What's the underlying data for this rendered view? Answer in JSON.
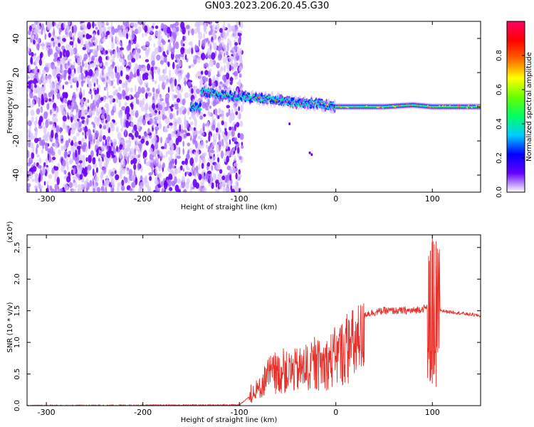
{
  "title": "GN03.2023.206.20.45.G30",
  "chart_data": [
    {
      "type": "heatmap",
      "xlabel": "Height of straight line (km)",
      "ylabel": "Frequency (Hz)",
      "xlim": [
        -320,
        150
      ],
      "ylim": [
        -50,
        50
      ],
      "xticks": [
        -300,
        -200,
        -100,
        0,
        100
      ],
      "yticks": [
        -40,
        -20,
        0,
        20,
        40
      ],
      "colorbar": {
        "label": "Normalized spectral amplitude",
        "range": [
          0,
          1
        ],
        "ticks": [
          "0.0",
          "0.2",
          "0.4",
          "0.6",
          "0.8"
        ],
        "colors": [
          "#ffffff",
          "#6600ff",
          "#0000ff",
          "#00ccff",
          "#00ff66",
          "#66ff00",
          "#ffff00",
          "#ff6600",
          "#ff0000",
          "#ff0066"
        ]
      },
      "noise_region_x": [
        -320,
        -100
      ],
      "signal_ridge": [
        {
          "x": -140,
          "y": 9
        },
        {
          "x": -120,
          "y": 7
        },
        {
          "x": -100,
          "y": 6
        },
        {
          "x": -80,
          "y": 5
        },
        {
          "x": -60,
          "y": 4
        },
        {
          "x": -40,
          "y": 2
        },
        {
          "x": -20,
          "y": 2
        },
        {
          "x": 0,
          "y": 0
        },
        {
          "x": 20,
          "y": 0
        },
        {
          "x": 50,
          "y": 0
        },
        {
          "x": 80,
          "y": 1
        },
        {
          "x": 100,
          "y": 0
        },
        {
          "x": 150,
          "y": 0
        }
      ],
      "grid": false
    },
    {
      "type": "line",
      "xlabel": "Height of straight line (km)",
      "ylabel": "SNR (10 * v/v)",
      "y_multiplier": "(x10⁴)",
      "xlim": [
        -320,
        150
      ],
      "ylim": [
        0,
        2.7
      ],
      "xticks": [
        -300,
        -200,
        -100,
        0,
        100
      ],
      "yticks": [
        "0.0",
        "0.5",
        "1.0",
        "1.5",
        "2.0",
        "2.5"
      ],
      "series": [
        {
          "color": "#e8302a",
          "envelope": [
            {
              "x": -320,
              "y": 0.0
            },
            {
              "x": -100,
              "y": 0.01
            },
            {
              "x": -85,
              "y": 0.2
            },
            {
              "x": -70,
              "y": 0.7
            },
            {
              "x": -50,
              "y": 0.75
            },
            {
              "x": -30,
              "y": 0.85
            },
            {
              "x": -10,
              "y": 0.95
            },
            {
              "x": 10,
              "y": 1.25
            },
            {
              "x": 30,
              "y": 1.5
            },
            {
              "x": 50,
              "y": 1.55
            },
            {
              "x": 80,
              "y": 1.55
            },
            {
              "x": 95,
              "y": 1.6
            },
            {
              "x": 100,
              "y": 1.6
            },
            {
              "x": 110,
              "y": 1.5
            },
            {
              "x": 150,
              "y": 1.42
            }
          ],
          "spikes": [
            {
              "x": 98,
              "min": 0.4,
              "max": 2.45
            },
            {
              "x": 100,
              "min": 0.35,
              "max": 2.7
            },
            {
              "x": 102,
              "min": 0.5,
              "max": 2.55
            },
            {
              "x": 104,
              "min": 0.3,
              "max": 2.6
            }
          ]
        }
      ],
      "grid": false
    }
  ]
}
